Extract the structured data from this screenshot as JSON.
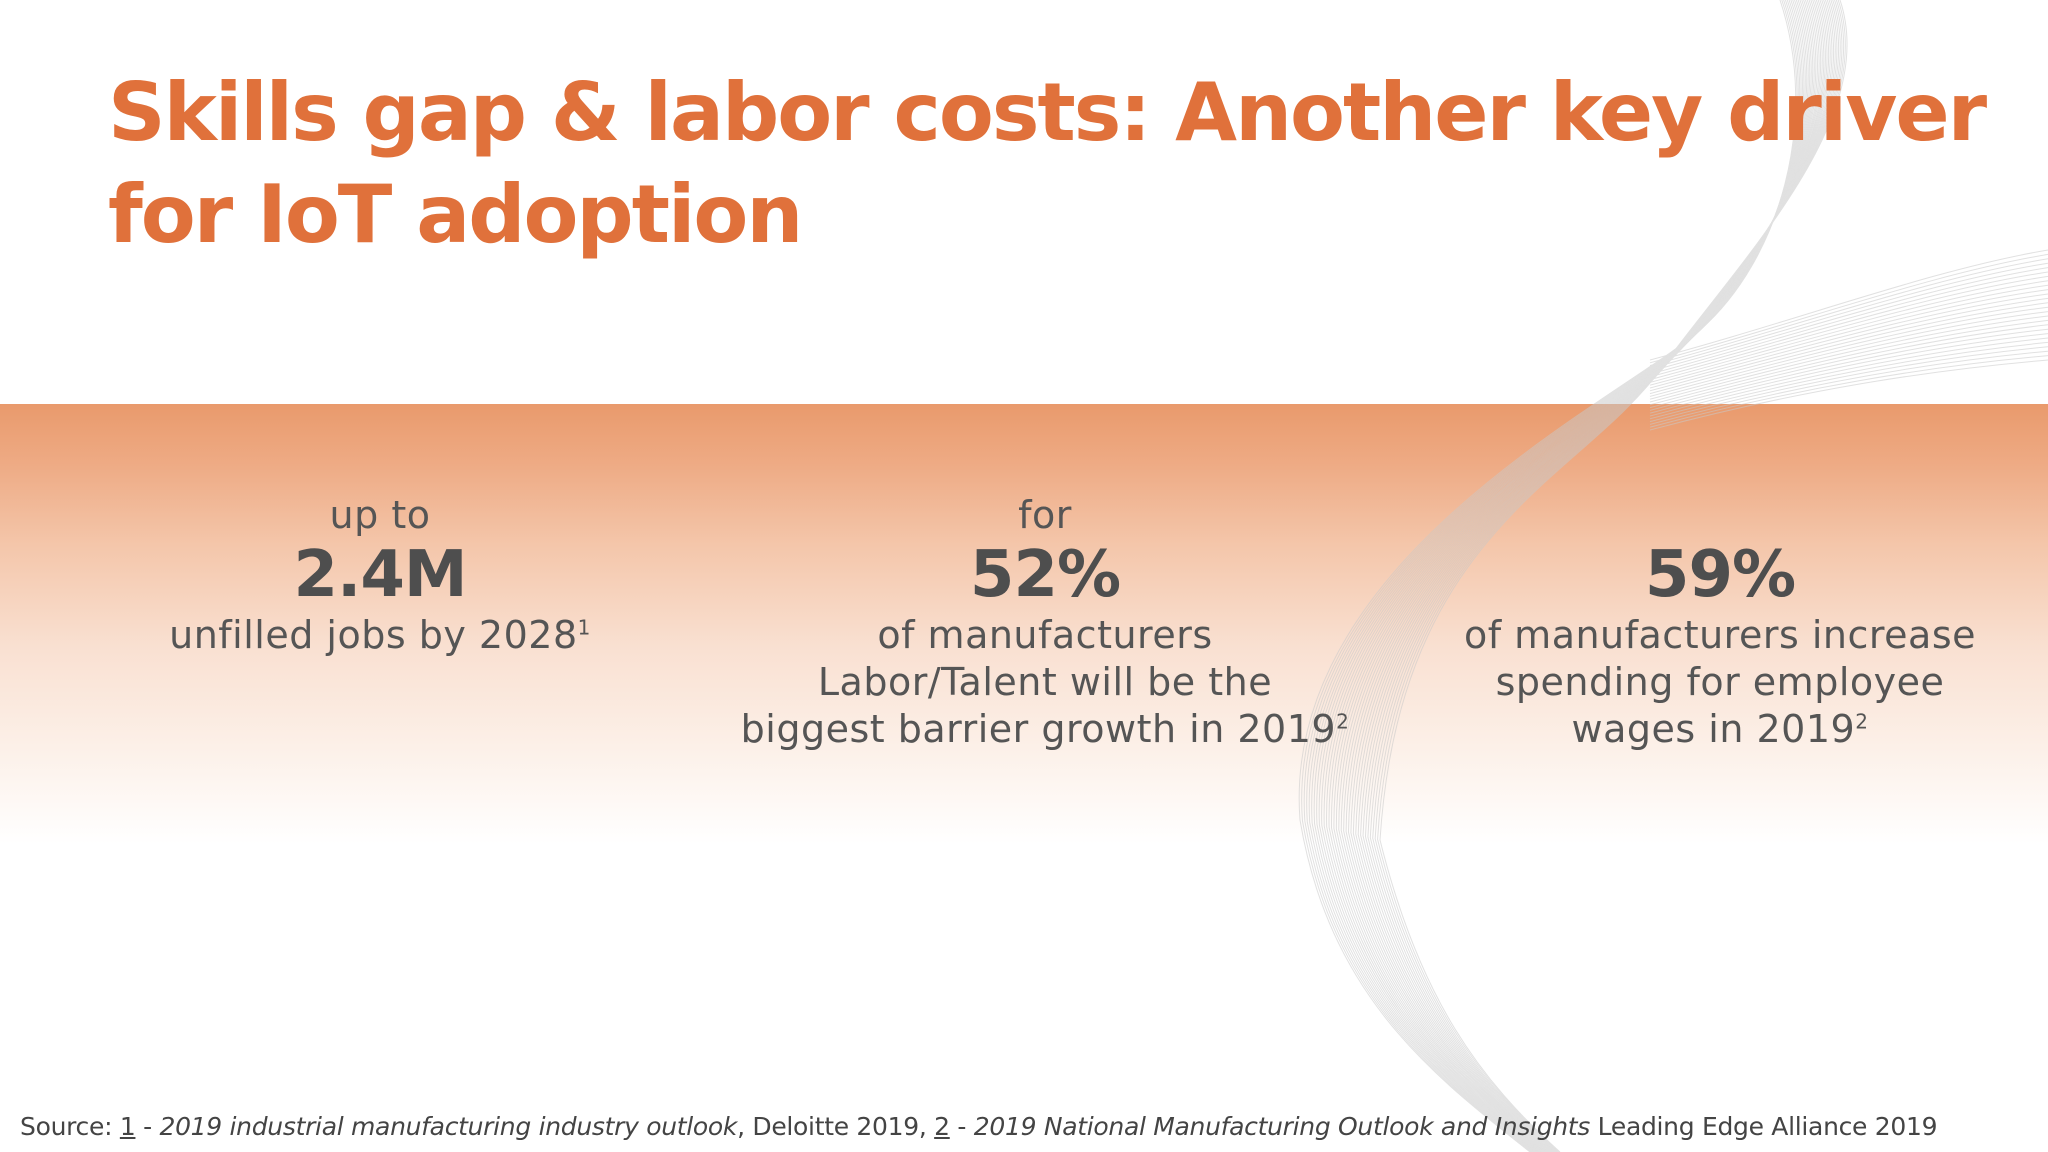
{
  "title": "Skills gap & labor costs: Another key driver for IoT adoption",
  "stats": [
    {
      "pre": "up to",
      "value": "2.4M",
      "lines": [
        "unfilled jobs by 2028"
      ],
      "sup": "1"
    },
    {
      "pre": "for",
      "value": "52%",
      "lines": [
        "of manufacturers",
        "Labor/Talent will be the",
        "biggest barrier growth in 2019"
      ],
      "sup": "2"
    },
    {
      "pre": "",
      "value": "59%",
      "lines": [
        "of manufacturers increase",
        "spending for employee",
        "wages in 2019"
      ],
      "sup": "2"
    }
  ],
  "source": {
    "label": "Source: ",
    "ref1": "1",
    "sep1": " - ",
    "pub1": "2019 industrial manufacturing industry outlook",
    "org1": ", Deloitte 2019, ",
    "ref2": "2",
    "sep2": " - ",
    "pub2": "2019 National Manufacturing Outlook and Insights",
    "org2": " Leading Edge Alliance 2019"
  },
  "colors": {
    "title": "#e0713b",
    "band_top": "#e99a6c",
    "text": "#555555"
  }
}
